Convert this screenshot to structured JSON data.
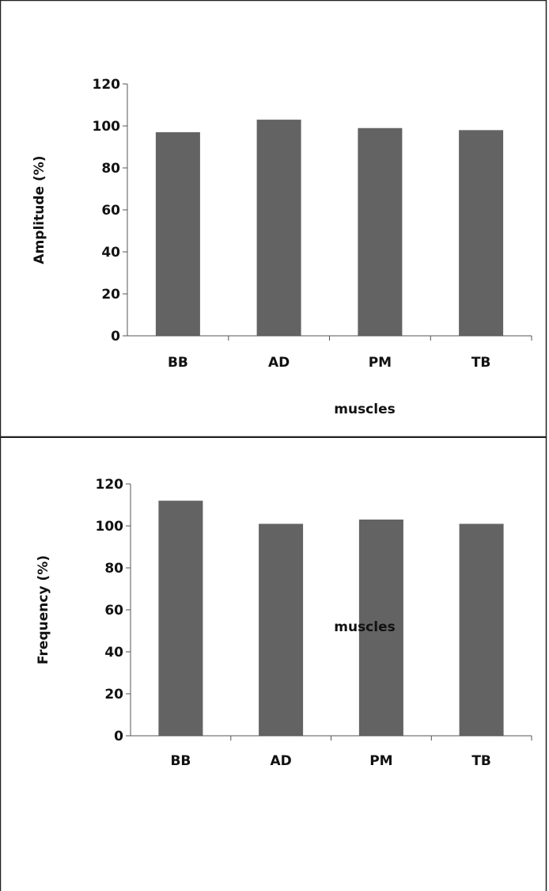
{
  "bar_color": "#636363",
  "chart_data": [
    {
      "type": "bar",
      "categories": [
        "BB",
        "AD",
        "PM",
        "TB"
      ],
      "values": [
        97,
        103,
        99,
        98
      ],
      "title": "",
      "xlabel": "muscles",
      "ylabel": "Amplitude (%)",
      "ylim": [
        0,
        120
      ],
      "yticks": [
        0,
        20,
        40,
        60,
        80,
        100,
        120
      ],
      "grid": false
    },
    {
      "type": "bar",
      "categories": [
        "BB",
        "AD",
        "PM",
        "TB"
      ],
      "values": [
        112,
        101,
        103,
        101
      ],
      "title": "",
      "xlabel": "muscles",
      "ylabel": "Frequency (%)",
      "ylim": [
        0,
        120
      ],
      "yticks": [
        0,
        20,
        40,
        60,
        80,
        100,
        120
      ],
      "grid": false
    }
  ]
}
